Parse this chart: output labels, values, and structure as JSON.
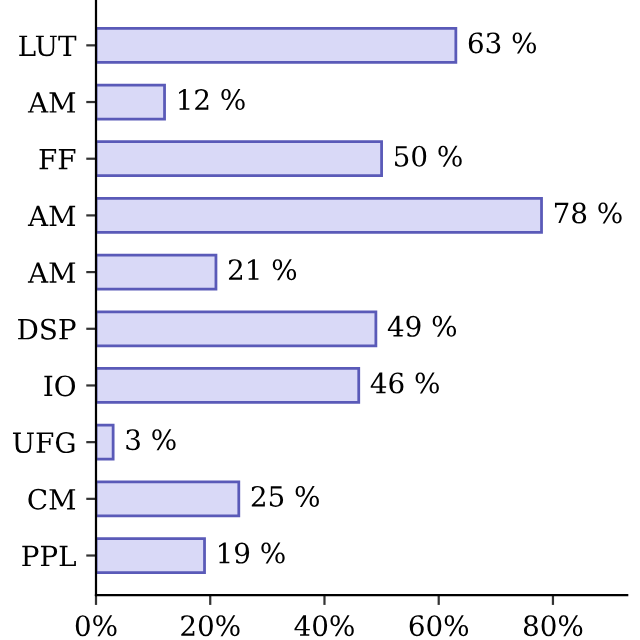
{
  "chart_data": {
    "type": "bar",
    "orientation": "horizontal",
    "categories": [
      "LUT",
      "AM",
      "FF",
      "AM",
      "AM",
      "DSP",
      "IO",
      "UFG",
      "CM",
      "PPL"
    ],
    "values": [
      63,
      12,
      50,
      78,
      21,
      49,
      46,
      3,
      25,
      19
    ],
    "value_labels": [
      "63 %",
      "12 %",
      "50 %",
      "78 %",
      "21 %",
      "49 %",
      "46 %",
      "3 %",
      "25 %",
      "19 %"
    ],
    "color": "#d9d9f7",
    "xlim": [
      0,
      93
    ],
    "xticks": [
      {
        "value": 0,
        "label": "0%"
      },
      {
        "value": 20,
        "label": "20%"
      },
      {
        "value": 40,
        "label": "40%"
      },
      {
        "value": 60,
        "label": "60%"
      },
      {
        "value": 80,
        "label": "80%"
      }
    ],
    "grid": false,
    "legend": false
  }
}
